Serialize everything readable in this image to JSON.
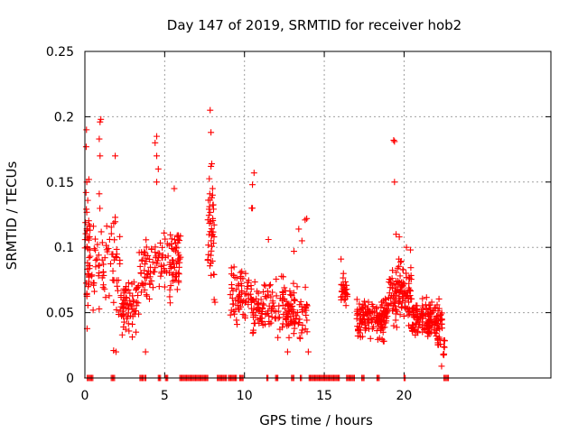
{
  "chart_data": {
    "type": "scatter",
    "title": "Day 147 of 2019, SRMTID for receiver hob2",
    "xlabel": "GPS time / hours",
    "ylabel": "SRMTID / TECUs",
    "xlim": [
      0,
      29.2
    ],
    "ylim": [
      0,
      0.25
    ],
    "xticks": [
      0,
      5,
      10,
      15,
      20
    ],
    "yticks": [
      0,
      0.05,
      0.1,
      0.15,
      0.2,
      0.25
    ],
    "ytick_labels": [
      "0",
      "0.05",
      "0.1",
      "0.15",
      "0.2",
      "0.25"
    ],
    "grid": true,
    "marker": "+",
    "color": "#ff0000",
    "series": [
      {
        "name": "SRMTID",
        "clusters": [
          {
            "x_range": [
              0.0,
              0.35
            ],
            "count": 40,
            "y_center": 0.1,
            "y_spread": 0.045
          },
          {
            "x_range": [
              0.4,
              2.2
            ],
            "count": 70,
            "y_center": 0.085,
            "y_spread": 0.03
          },
          {
            "x_range": [
              2.2,
              3.4
            ],
            "count": 75,
            "y_center": 0.055,
            "y_spread": 0.018
          },
          {
            "x_range": [
              3.4,
              6.0
            ],
            "count": 130,
            "y_center": 0.085,
            "y_spread": 0.022
          },
          {
            "x_range": [
              7.7,
              8.1
            ],
            "count": 40,
            "y_center": 0.11,
            "y_spread": 0.035
          },
          {
            "x_range": [
              9.1,
              10.5
            ],
            "count": 70,
            "y_center": 0.065,
            "y_spread": 0.02
          },
          {
            "x_range": [
              10.5,
              12.6
            ],
            "count": 100,
            "y_center": 0.055,
            "y_spread": 0.02
          },
          {
            "x_range": [
              12.6,
              14.0
            ],
            "count": 80,
            "y_center": 0.05,
            "y_spread": 0.018
          },
          {
            "x_range": [
              16.0,
              16.5
            ],
            "count": 30,
            "y_center": 0.065,
            "y_spread": 0.012
          },
          {
            "x_range": [
              17.0,
              19.0
            ],
            "count": 150,
            "y_center": 0.045,
            "y_spread": 0.014
          },
          {
            "x_range": [
              19.0,
              20.5
            ],
            "count": 120,
            "y_center": 0.065,
            "y_spread": 0.02
          },
          {
            "x_range": [
              20.5,
              22.4
            ],
            "count": 150,
            "y_center": 0.045,
            "y_spread": 0.013
          },
          {
            "x_range": [
              22.0,
              22.6
            ],
            "count": 15,
            "y_center": 0.025,
            "y_spread": 0.01
          }
        ],
        "points": [
          {
            "x": 0.1,
            "y": 0.19
          },
          {
            "x": 0.08,
            "y": 0.177
          },
          {
            "x": 0.12,
            "y": 0.15
          },
          {
            "x": 0.25,
            "y": 0.152
          },
          {
            "x": 0.04,
            "y": 0.119
          },
          {
            "x": 0.07,
            "y": 0.142
          },
          {
            "x": 1.0,
            "y": 0.198
          },
          {
            "x": 0.95,
            "y": 0.196
          },
          {
            "x": 0.9,
            "y": 0.183
          },
          {
            "x": 0.95,
            "y": 0.17
          },
          {
            "x": 1.9,
            "y": 0.17
          },
          {
            "x": 0.9,
            "y": 0.141
          },
          {
            "x": 1.9,
            "y": 0.123
          },
          {
            "x": 1.95,
            "y": 0.02
          },
          {
            "x": 1.8,
            "y": 0.021
          },
          {
            "x": 4.4,
            "y": 0.18
          },
          {
            "x": 4.5,
            "y": 0.185
          },
          {
            "x": 4.5,
            "y": 0.17
          },
          {
            "x": 4.6,
            "y": 0.16
          },
          {
            "x": 4.5,
            "y": 0.15
          },
          {
            "x": 5.6,
            "y": 0.145
          },
          {
            "x": 3.8,
            "y": 0.02
          },
          {
            "x": 7.85,
            "y": 0.205
          },
          {
            "x": 7.9,
            "y": 0.188
          },
          {
            "x": 7.95,
            "y": 0.164
          },
          {
            "x": 7.9,
            "y": 0.162
          },
          {
            "x": 8.0,
            "y": 0.145
          },
          {
            "x": 8.0,
            "y": 0.14
          },
          {
            "x": 7.95,
            "y": 0.138
          },
          {
            "x": 8.1,
            "y": 0.06
          },
          {
            "x": 8.15,
            "y": 0.058
          },
          {
            "x": 10.6,
            "y": 0.157
          },
          {
            "x": 10.5,
            "y": 0.148
          },
          {
            "x": 10.45,
            "y": 0.13
          },
          {
            "x": 10.5,
            "y": 0.13
          },
          {
            "x": 11.5,
            "y": 0.106
          },
          {
            "x": 13.1,
            "y": 0.097
          },
          {
            "x": 13.4,
            "y": 0.114
          },
          {
            "x": 13.6,
            "y": 0.105
          },
          {
            "x": 13.9,
            "y": 0.122
          },
          {
            "x": 13.8,
            "y": 0.121
          },
          {
            "x": 14.0,
            "y": 0.02
          },
          {
            "x": 12.7,
            "y": 0.02
          },
          {
            "x": 16.05,
            "y": 0.091
          },
          {
            "x": 16.2,
            "y": 0.08
          },
          {
            "x": 19.35,
            "y": 0.182
          },
          {
            "x": 19.4,
            "y": 0.181
          },
          {
            "x": 19.4,
            "y": 0.15
          },
          {
            "x": 19.5,
            "y": 0.11
          },
          {
            "x": 19.7,
            "y": 0.108
          },
          {
            "x": 20.15,
            "y": 0.1
          },
          {
            "x": 20.4,
            "y": 0.098
          },
          {
            "x": 22.35,
            "y": 0.009
          },
          {
            "x": 22.45,
            "y": 0.018
          }
        ],
        "zero_segments": [
          [
            0.15,
            0.55
          ],
          [
            1.65,
            1.9
          ],
          [
            3.45,
            3.7
          ],
          [
            3.75,
            3.85
          ],
          [
            4.6,
            4.75
          ],
          [
            5.05,
            5.25
          ],
          [
            5.95,
            7.75
          ],
          [
            8.3,
            8.9
          ],
          [
            9.0,
            9.5
          ],
          [
            9.7,
            9.95
          ],
          [
            11.4,
            11.5
          ],
          [
            11.95,
            12.1
          ],
          [
            12.95,
            13.1
          ],
          [
            13.5,
            13.6
          ],
          [
            14.05,
            15.95
          ],
          [
            16.4,
            16.95
          ],
          [
            17.35,
            17.55
          ],
          [
            18.3,
            18.45
          ],
          [
            20.0,
            20.1
          ],
          [
            22.5,
            22.8
          ]
        ]
      }
    ]
  }
}
